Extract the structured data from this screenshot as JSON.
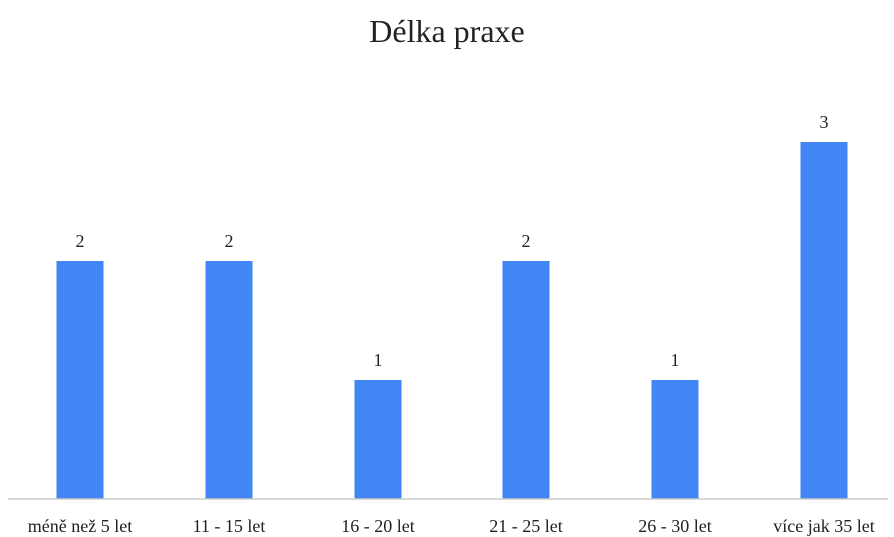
{
  "chart_data": {
    "type": "bar",
    "title": "Délka praxe",
    "xlabel": "",
    "ylabel": "",
    "categories": [
      "méně než 5 let",
      "11 - 15 let",
      "16 - 20 let",
      "21 - 25 let",
      "26 - 30 let",
      "více jak 35 let"
    ],
    "values": [
      2,
      2,
      1,
      2,
      1,
      3
    ],
    "ylim": [
      0,
      3
    ],
    "grid": false,
    "legend": "none",
    "bar_color": "#4285F4",
    "axis_color": "#cccccc"
  }
}
